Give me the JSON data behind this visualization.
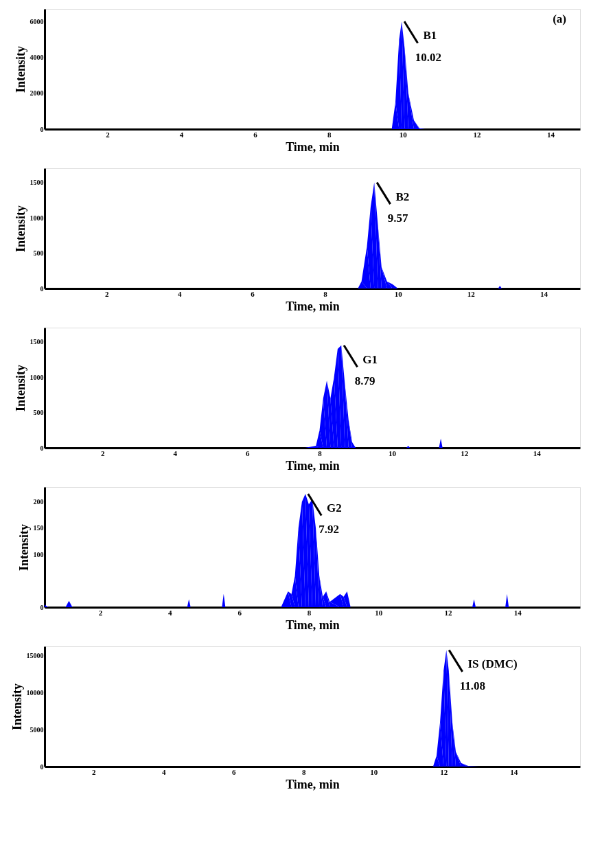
{
  "chart_data": [
    {
      "type": "area",
      "xlabel": "Time, min",
      "ylabel": "Intensity",
      "xlim": [
        0.3,
        14.8
      ],
      "ylim": [
        0,
        6700
      ],
      "xticks": [
        2,
        4,
        6,
        8,
        10,
        12,
        14
      ],
      "yticks": [
        0,
        2000,
        4000,
        6000
      ],
      "annotations": [
        {
          "text": "B1",
          "x": 9.97,
          "y": 6000
        },
        {
          "text": "10.02",
          "x": 9.97,
          "y": 6000
        },
        "(a)"
      ],
      "series": [
        {
          "color": "#0000ff",
          "x": [
            0.3,
            9.7,
            9.8,
            9.9,
            9.97,
            10.05,
            10.15,
            10.3,
            10.45,
            10.6,
            14.8
          ],
          "values": [
            0,
            0,
            1500,
            5000,
            6000,
            4500,
            2000,
            500,
            50,
            0,
            0
          ]
        }
      ]
    },
    {
      "type": "area",
      "xlabel": "Time, min",
      "ylabel": "Intensity",
      "xlim": [
        0.3,
        15
      ],
      "ylim": [
        0,
        1700
      ],
      "xticks": [
        2,
        4,
        6,
        8,
        10,
        12,
        14
      ],
      "yticks": [
        0,
        500,
        1000,
        1500
      ],
      "annotations": [
        {
          "text": "B2",
          "x": 9.35,
          "y": 1500
        },
        {
          "text": "9.57",
          "x": 9.35,
          "y": 1500
        }
      ],
      "series": [
        {
          "color": "#0000ff",
          "x": [
            0.3,
            8.9,
            9.0,
            9.15,
            9.25,
            9.35,
            9.45,
            9.55,
            9.7,
            9.85,
            10.0,
            12.75,
            12.8,
            12.85,
            15
          ],
          "values": [
            0,
            0,
            100,
            600,
            1150,
            1500,
            900,
            300,
            100,
            60,
            0,
            0,
            40,
            0,
            0
          ]
        }
      ]
    },
    {
      "type": "area",
      "xlabel": "Time, min",
      "ylabel": "Intensity",
      "xlim": [
        0.4,
        15.2
      ],
      "ylim": [
        0,
        1700
      ],
      "xticks": [
        2,
        4,
        6,
        8,
        10,
        12,
        14
      ],
      "yticks": [
        0,
        500,
        1000,
        1500
      ],
      "annotations": [
        {
          "text": "G1",
          "x": 8.6,
          "y": 1450
        },
        {
          "text": "8.79",
          "x": 8.6,
          "y": 1450
        }
      ],
      "series": [
        {
          "color": "#0000ff",
          "x": [
            0.4,
            7.6,
            7.9,
            8.0,
            8.1,
            8.2,
            8.3,
            8.4,
            8.5,
            8.6,
            8.7,
            8.8,
            8.9,
            9.0,
            10.4,
            10.45,
            10.5,
            11.3,
            11.35,
            11.4,
            15.2
          ],
          "values": [
            0,
            0,
            30,
            250,
            700,
            950,
            700,
            1000,
            1400,
            1450,
            900,
            400,
            80,
            0,
            0,
            30,
            0,
            0,
            130,
            0,
            0
          ]
        }
      ]
    },
    {
      "type": "area",
      "xlabel": "Time, min",
      "ylabel": "Intensity",
      "xlim": [
        0.4,
        15.8
      ],
      "ylim": [
        0,
        228
      ],
      "xticks": [
        2,
        4,
        6,
        8,
        10,
        12,
        14
      ],
      "yticks": [
        0,
        100,
        150,
        200
      ],
      "annotations": [
        {
          "text": "G2",
          "x": 7.9,
          "y": 215
        },
        {
          "text": "7.92",
          "x": 7.9,
          "y": 215
        }
      ],
      "series": [
        {
          "color": "#0000ff",
          "x": [
            0.4,
            0.5,
            1.0,
            1.1,
            1.2,
            4.5,
            4.55,
            4.6,
            5.5,
            5.55,
            5.6,
            7.2,
            7.4,
            7.5,
            7.6,
            7.7,
            7.8,
            7.9,
            8.0,
            8.1,
            8.2,
            8.3,
            8.4,
            8.5,
            8.6,
            8.9,
            9.0,
            9.1,
            9.2,
            12.7,
            12.75,
            12.8,
            13.65,
            13.7,
            13.75,
            15.8
          ],
          "values": [
            5,
            0,
            0,
            12,
            0,
            0,
            15,
            0,
            0,
            25,
            0,
            0,
            30,
            25,
            60,
            150,
            200,
            215,
            195,
            205,
            150,
            60,
            20,
            30,
            10,
            25,
            20,
            30,
            0,
            0,
            15,
            0,
            0,
            25,
            0,
            0
          ]
        }
      ]
    },
    {
      "type": "area",
      "xlabel": "Time, min",
      "ylabel": "Intensity",
      "xlim": [
        0.6,
        15.9
      ],
      "ylim": [
        0,
        16300
      ],
      "xticks": [
        2,
        4,
        6,
        8,
        10,
        12,
        14
      ],
      "yticks": [
        0,
        5000,
        10000,
        15000
      ],
      "annotations": [
        {
          "text": "IS (DMC)",
          "x": 12.08,
          "y": 15800
        },
        {
          "text": "11.08",
          "x": 12.08,
          "y": 15800
        }
      ],
      "series": [
        {
          "color": "#0000ff",
          "x": [
            0.6,
            11.7,
            11.8,
            11.9,
            12.0,
            12.08,
            12.15,
            12.25,
            12.35,
            12.5,
            12.7,
            13.0,
            15.9
          ],
          "values": [
            0,
            0,
            1500,
            6000,
            13000,
            15800,
            13000,
            6000,
            2000,
            500,
            100,
            0,
            0
          ]
        }
      ]
    }
  ]
}
